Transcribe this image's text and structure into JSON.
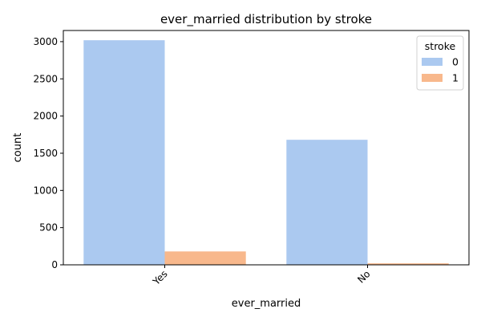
{
  "chart_data": {
    "type": "bar",
    "title": "ever_married distribution by stroke",
    "xlabel": "ever_married",
    "ylabel": "count",
    "categories": [
      "Yes",
      "No"
    ],
    "series": [
      {
        "name": "0",
        "values": [
          3019,
          1681
        ],
        "color": "#abc9f0"
      },
      {
        "name": "1",
        "values": [
          180,
          20
        ],
        "color": "#f8b88c"
      }
    ],
    "ylim": [
      0,
      3150
    ],
    "yticks": [
      0,
      500,
      1000,
      1500,
      2000,
      2500,
      3000
    ],
    "legend": {
      "title": "stroke",
      "placement": "top-right"
    },
    "grid": false
  }
}
